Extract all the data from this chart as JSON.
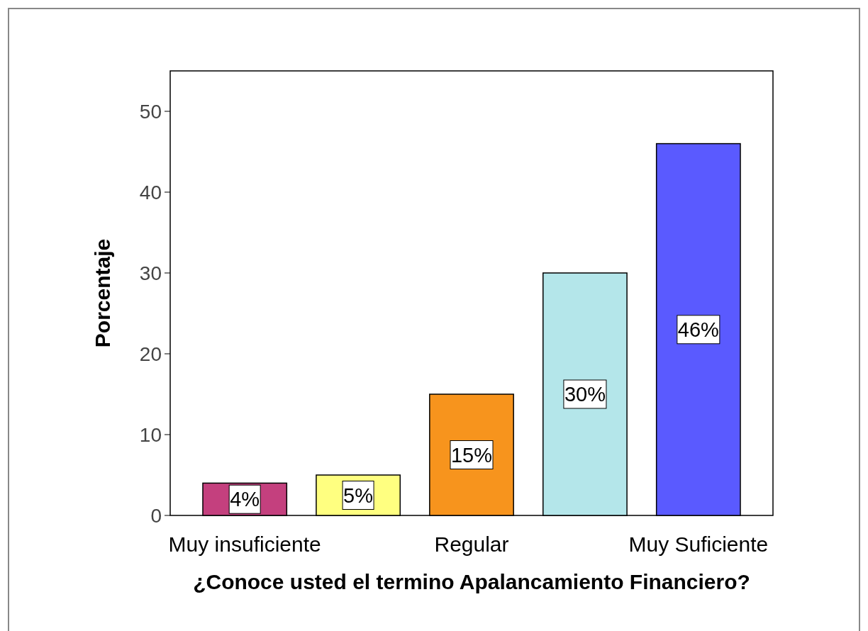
{
  "chart_data": {
    "type": "bar",
    "xlabel": "¿Conoce usted el termino Apalancamiento Financiero?",
    "ylabel": "Porcentaje",
    "categories": [
      "Muy insuficiente",
      null,
      "Regular",
      null,
      "Muy Suficiente"
    ],
    "values": [
      4,
      5,
      15,
      30,
      46
    ],
    "colors": [
      "#c4407e",
      "#ffff80",
      "#f7941d",
      "#b4e6ea",
      "#5a5aff"
    ],
    "value_labels": [
      "4%",
      "5%",
      "15%",
      "30%",
      "46%"
    ],
    "ylim": [
      0,
      55
    ],
    "yticks": [
      0,
      10,
      20,
      30,
      40,
      50
    ],
    "grid": false
  }
}
